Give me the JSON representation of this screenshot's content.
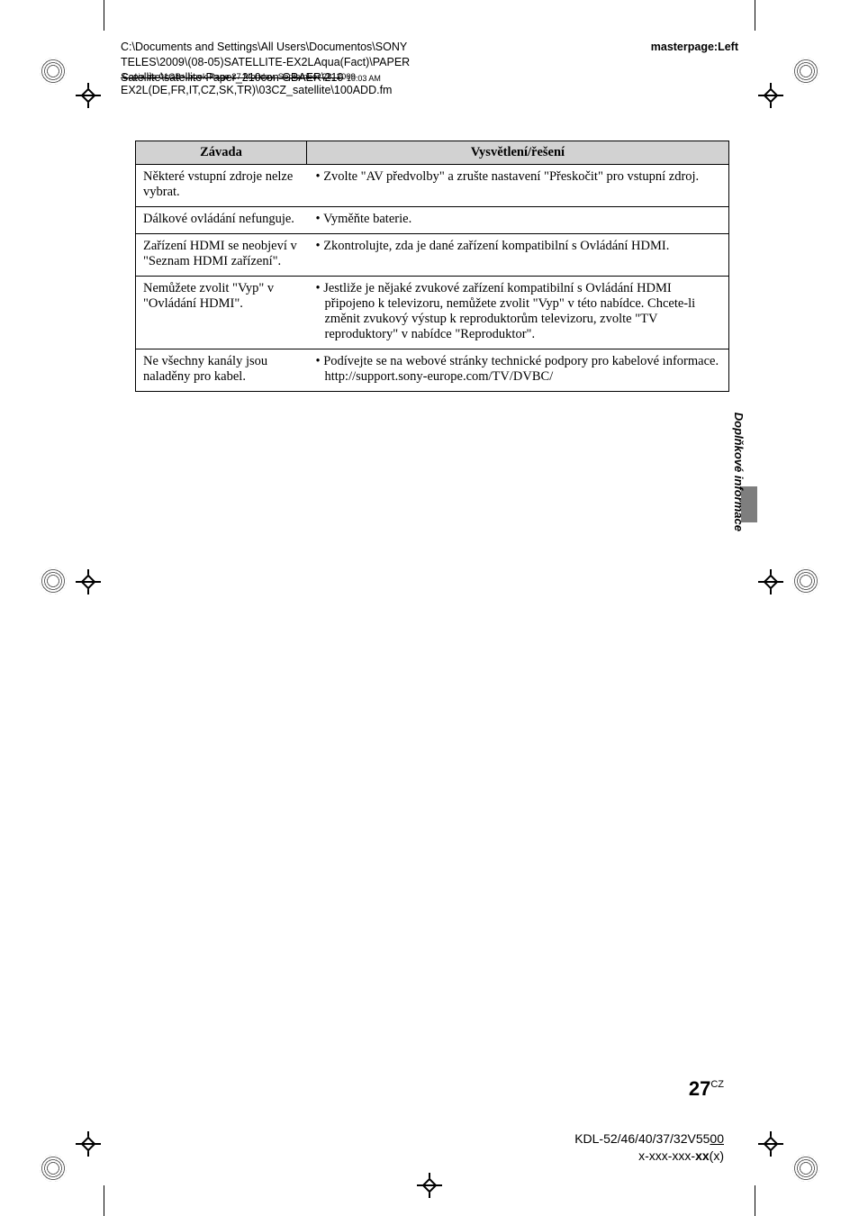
{
  "header": {
    "path_line1": "C:\\Documents and Settings\\All Users\\Documentos\\SONY",
    "path_line2": "TELES\\2009\\(08-05)SATELLITE-EX2LAqua(Fact)\\PAPER",
    "path_line3_strike": "Satellite\\satellite-Paper_210con GBAER\\210",
    "path_line3_suffix": "10:03 AM",
    "path_line3_mid": "Copia de 01GB+.book  Page 27  Monday, September 28, 2009",
    "path_line4": "EX2L(DE,FR,IT,CZ,SK,TR)\\03CZ_satellite\\100ADD.fm",
    "masterpage": "masterpage:Left"
  },
  "table": {
    "col1_header": "Závada",
    "col2_header": "Vysvětlení/řešení",
    "rows": [
      {
        "problem": "Některé vstupní zdroje nelze vybrat.",
        "solutions": [
          "Zvolte \"AV předvolby\" a zrušte nastavení \"Přeskočit\" pro vstupní zdroj."
        ]
      },
      {
        "problem": "Dálkové ovládání nefunguje.",
        "solutions": [
          "Vyměňte baterie."
        ]
      },
      {
        "problem": "Zařízení HDMI se neobjeví v \"Seznam HDMI zařízení\".",
        "solutions": [
          "Zkontrolujte, zda je dané zařízení kompatibilní s Ovládání HDMI."
        ]
      },
      {
        "problem": "Nemůžete zvolit \"Vyp\" v \"Ovládání HDMI\".",
        "solutions": [
          "Jestliže je nějaké zvukové zařízení kompatibilní s Ovládání HDMI připojeno k televizoru, nemůžete zvolit \"Vyp\" v této nabídce. Chcete-li změnit zvukový výstup k reproduktorům televizoru, zvolte \"TV reproduktory\" v nabídce \"Reproduktor\"."
        ]
      },
      {
        "problem": "Ne všechny kanály jsou naladěny pro kabel.",
        "solutions": [
          "Podívejte se na webové stránky technické podpory pro kabelové informace.\nhttp://support.sony-europe.com/TV/DVBC/"
        ]
      }
    ]
  },
  "side_label": "Doplňkové informace",
  "page_number": {
    "num": "27",
    "lang": "CZ"
  },
  "footer": {
    "line1_prefix": "KDL-52/46/40/37/32V55",
    "line1_underlined": "00",
    "line2_prefix": "x-xxx-xxx-",
    "line2_bold": "xx",
    "line2_suffix": "(x)"
  },
  "colors": {
    "header_bg": "#d2d2d2",
    "side_tab": "#7e7e7e",
    "text": "#000000",
    "page_bg": "#ffffff"
  }
}
